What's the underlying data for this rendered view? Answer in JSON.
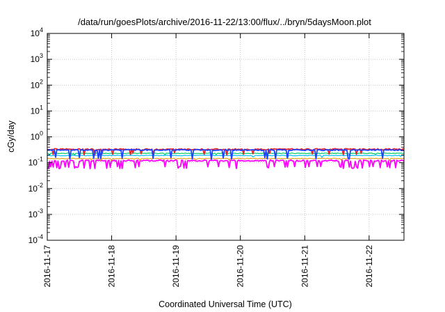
{
  "chart_data": {
    "type": "line",
    "title": "/data/run/goesPlots/archive/2016-11-22/13:00/flux/../bryn/5daysMoon.plot",
    "xlabel": "Coordinated Universal Time (UTC)",
    "ylabel": "cGy/day",
    "y_scale": "log",
    "ylim": [
      0.0001,
      10000
    ],
    "xlim": [
      "2016-11-17T00:00",
      "2016-11-22T13:00"
    ],
    "grid": true,
    "legend": "none",
    "y_ticks": [
      {
        "value": 0.0001,
        "base": "10",
        "exp": "-4"
      },
      {
        "value": 0.001,
        "base": "10",
        "exp": "-3"
      },
      {
        "value": 0.01,
        "base": "10",
        "exp": "-2"
      },
      {
        "value": 0.1,
        "base": "10",
        "exp": "-1"
      },
      {
        "value": 1,
        "base": "10",
        "exp": "0"
      },
      {
        "value": 10,
        "base": "10",
        "exp": "1"
      },
      {
        "value": 100,
        "base": "10",
        "exp": "2"
      },
      {
        "value": 1000,
        "base": "10",
        "exp": "3"
      },
      {
        "value": 10000,
        "base": "10",
        "exp": "4"
      }
    ],
    "x_ticks": [
      "2016-11-17",
      "2016-11-18",
      "2016-11-19",
      "2016-11-20",
      "2016-11-21",
      "2016-11-22"
    ],
    "series": [
      {
        "color": "#ff00ff",
        "baseline": 0.12,
        "dip": 0.065,
        "dip_prob": 0.16,
        "jitter": 0.06,
        "width": 1.8
      },
      {
        "color": "#e6a31a",
        "baseline": 0.145,
        "dip": 0.13,
        "dip_prob": 0.04,
        "jitter": 0.03,
        "width": 1.2
      },
      {
        "color": "#00bfff",
        "baseline": 0.19,
        "dip": 0.17,
        "dip_prob": 0.04,
        "jitter": 0.03,
        "width": 1.2
      },
      {
        "color": "#00cc66",
        "baseline": 0.23,
        "dip": 0.2,
        "dip_prob": 0.04,
        "jitter": 0.03,
        "width": 1.2
      },
      {
        "color": "#e6262e",
        "baseline": 0.33,
        "dip": 0.22,
        "dip_prob": 0.07,
        "jitter": 0.06,
        "width": 1.8
      },
      {
        "color": "#2040ff",
        "baseline": 0.31,
        "dip": 0.15,
        "dip_prob": 0.09,
        "jitter": 0.05,
        "width": 1.8
      }
    ]
  }
}
